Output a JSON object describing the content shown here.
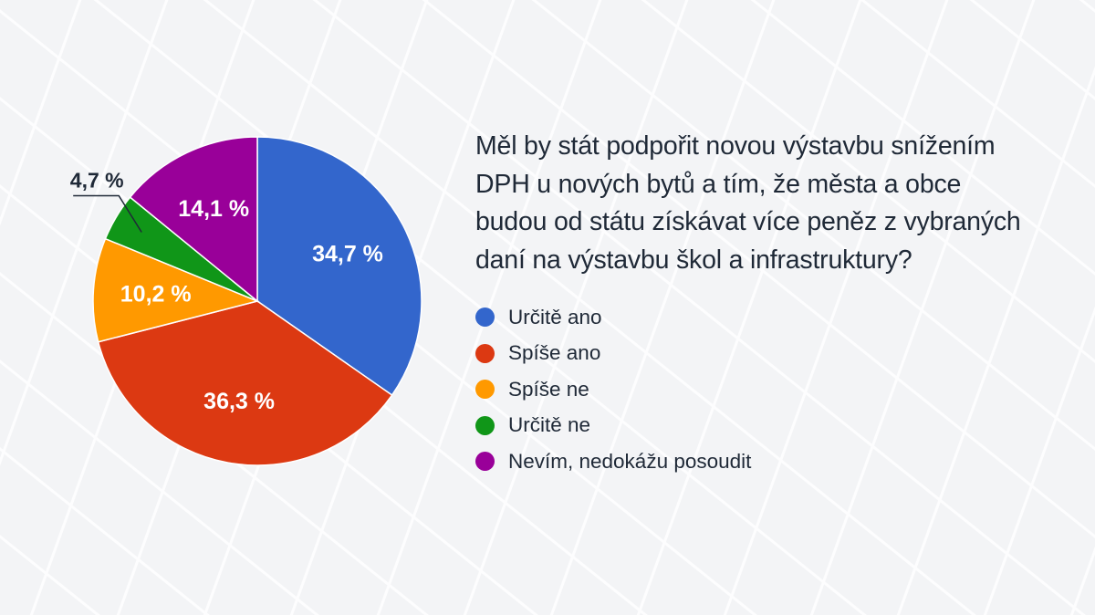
{
  "chart_data": {
    "type": "pie",
    "title": "Měl by stát podpořit novou výstavbu snížením DPH u nových bytů a tím, že města a obce budou od státu získávat více peněz z vybraných daní na výstavbu škol a infrastruktury?",
    "title_lines": [
      "Měl by stát podpořit novou výstavbu snížením",
      "DPH u nových bytů a tím, že města a obce",
      "budou od státu získávat více peněz z vybraných",
      "daní na výstavbu škol a infrastruktury?"
    ],
    "slices": [
      {
        "name": "Určitě ano",
        "value": 34.7,
        "label": "34,7 %",
        "color": "#3366cc"
      },
      {
        "name": "Spíše ano",
        "value": 36.3,
        "label": "36,3 %",
        "color": "#dc3912"
      },
      {
        "name": "Spíše ne",
        "value": 10.2,
        "label": "10,2 %",
        "color": "#ff9900"
      },
      {
        "name": "Určitě ne",
        "value": 4.7,
        "label": "4,7 %",
        "color": "#109618"
      },
      {
        "name": "Nevím, nedokážu posoudit",
        "value": 14.1,
        "label": "14,1 %",
        "color": "#990099"
      }
    ],
    "start": "12 o'clock",
    "direction": "clockwise",
    "legend_position": "right"
  }
}
